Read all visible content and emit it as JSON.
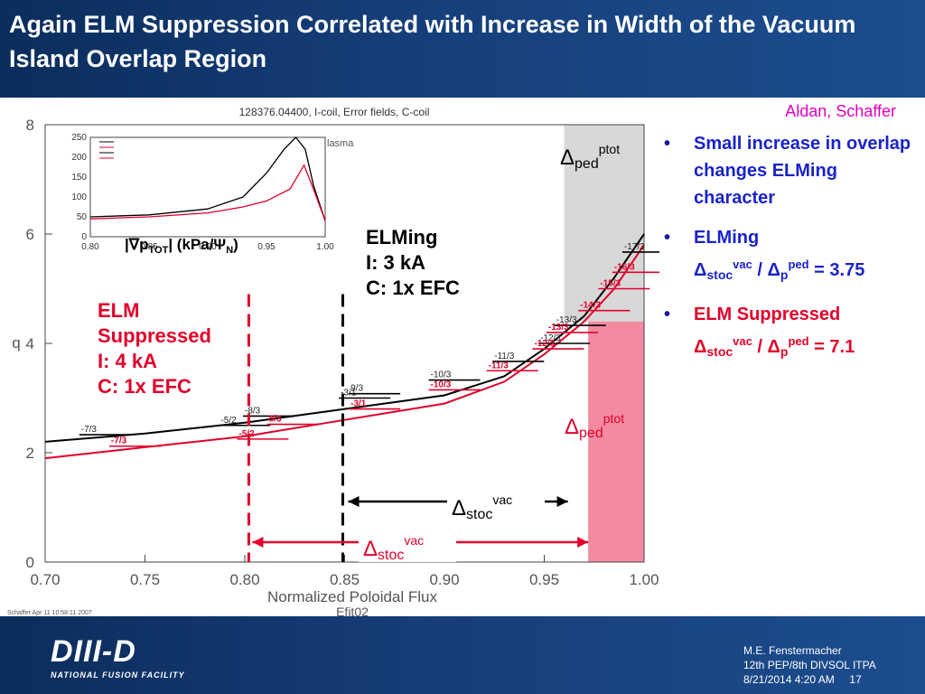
{
  "slide": {
    "title": "Again ELM Suppression Correlated with Increase in Width of the Vacuum Island Overlap Region",
    "authors": "Aldan, Schaffer",
    "bullets": [
      {
        "text": "Small increase in overlap changes ELMing character",
        "color": "#1a23c8"
      },
      {
        "text": "ELMing",
        "ratio_value": "= 3.75",
        "color": "#1a23c8"
      },
      {
        "text": "ELM Suppressed",
        "ratio_value": "= 7.1",
        "color": "#e0002a"
      }
    ],
    "footer": {
      "logo": "DIII-D",
      "logo_sub": "NATIONAL FUSION FACILITY",
      "line1": "M.E. Fenstermacher",
      "line2": "12th PEP/8th DIVSOL ITPA",
      "line3": "8/21/2014 4:20 AM",
      "page": "17"
    }
  },
  "chart_data": [
    {
      "type": "line",
      "title": "128376.04400, I-coil, Error fields, C-coil",
      "xlabel": "Normalized Poloidal Flux",
      "xlabel2": "Efit02",
      "ylabel": "q",
      "xlim": [
        0.7,
        1.0
      ],
      "ylim": [
        0,
        8
      ],
      "x_ticks": [
        "0.70",
        "0.75",
        "0.80",
        "0.85",
        "0.90",
        "0.95",
        "1.00"
      ],
      "y_ticks": [
        "0",
        "2",
        "4",
        "6",
        "8"
      ],
      "credit": "Schaffer Apr 11 10:58:11 2007",
      "series": [
        {
          "color": "#000000",
          "points": [
            [
              0.7,
              2.2
            ],
            [
              0.75,
              2.35
            ],
            [
              0.8,
              2.55
            ],
            [
              0.85,
              2.8
            ],
            [
              0.9,
              3.05
            ],
            [
              0.93,
              3.4
            ],
            [
              0.95,
              3.9
            ],
            [
              0.97,
              4.5
            ],
            [
              0.985,
              5.2
            ],
            [
              1.0,
              6.0
            ]
          ]
        },
        {
          "color": "#e0002a",
          "points": [
            [
              0.7,
              1.9
            ],
            [
              0.75,
              2.1
            ],
            [
              0.8,
              2.3
            ],
            [
              0.85,
              2.6
            ],
            [
              0.9,
              2.9
            ],
            [
              0.93,
              3.3
            ],
            [
              0.95,
              3.8
            ],
            [
              0.97,
              4.4
            ],
            [
              0.985,
              5.0
            ],
            [
              1.0,
              5.8
            ]
          ]
        }
      ],
      "black_labels": [
        {
          "text": "-7/3",
          "x": 0.718,
          "q": 2.33
        },
        {
          "text": "-5/2",
          "x": 0.788,
          "q": 2.5
        },
        {
          "text": "-8/3",
          "x": 0.8,
          "q": 2.67
        },
        {
          "text": "-3/1",
          "x": 0.848,
          "q": 3.0
        },
        {
          "text": "9/3",
          "x": 0.853,
          "q": 3.08
        },
        {
          "text": "-10/3",
          "x": 0.893,
          "q": 3.33
        },
        {
          "text": "-11/3",
          "x": 0.925,
          "q": 3.67
        },
        {
          "text": "-12/3",
          "x": 0.948,
          "q": 4.0
        },
        {
          "text": "-13/3",
          "x": 0.956,
          "q": 4.33
        },
        {
          "text": "-17/3",
          "x": 0.99,
          "q": 5.67
        }
      ],
      "red_labels": [
        {
          "text": "-7/3",
          "x": 0.733,
          "q": 2.12
        },
        {
          "text": "8/3",
          "x": 0.812,
          "q": 2.52
        },
        {
          "text": "-5/2",
          "x": 0.797,
          "q": 2.25
        },
        {
          "text": "-3/1",
          "x": 0.853,
          "q": 2.8
        },
        {
          "text": "-10/3",
          "x": 0.893,
          "q": 3.15
        },
        {
          "text": "-11/3",
          "x": 0.922,
          "q": 3.5
        },
        {
          "text": "-12/3",
          "x": 0.945,
          "q": 3.9
        },
        {
          "text": "-13/3",
          "x": 0.952,
          "q": 4.2
        },
        {
          "text": "-14/3",
          "x": 0.968,
          "q": 4.6
        },
        {
          "text": "-15/3",
          "x": 0.978,
          "q": 5.0
        },
        {
          "text": "-16/3",
          "x": 0.985,
          "q": 5.3
        }
      ],
      "annotations": {
        "ped_top_label": "Δ",
        "ped_sub": "ped",
        "ped_sup": "ptot",
        "stoc_sub": "stoc",
        "stoc_sup": "vac",
        "elming_lines": [
          "ELMing",
          "I:    3 kA",
          "C:   1x EFC"
        ],
        "suppressed_lines": [
          "ELM",
          "Suppressed",
          "I:    4 kA",
          "C:   1x EFC"
        ],
        "elming_x": 0.85,
        "suppressed_x": 0.802,
        "gray_band": [
          0.96,
          1.0
        ],
        "pink_band": [
          0.972,
          1.0
        ]
      }
    },
    {
      "type": "line",
      "ylabel_text": "|∇p",
      "ylabel_sub": "TOT",
      "ylabel_units": "| (kPa/Ψ",
      "ylabel_units_sub": "N",
      "xlim": [
        0.8,
        1.0
      ],
      "ylim": [
        0,
        250
      ],
      "x_ticks": [
        "0.80",
        "0.85",
        "0.90",
        "0.95",
        "1.00"
      ],
      "y_ticks": [
        "0",
        "50",
        "100",
        "150",
        "200",
        "250"
      ],
      "series": [
        {
          "color": "#000000",
          "points": [
            [
              0.8,
              50
            ],
            [
              0.85,
              55
            ],
            [
              0.9,
              70
            ],
            [
              0.93,
              100
            ],
            [
              0.95,
              160
            ],
            [
              0.965,
              220
            ],
            [
              0.975,
              250
            ],
            [
              0.983,
              220
            ],
            [
              0.99,
              130
            ],
            [
              1.0,
              40
            ]
          ]
        },
        {
          "color": "#e0002a",
          "points": [
            [
              0.8,
              45
            ],
            [
              0.85,
              50
            ],
            [
              0.9,
              60
            ],
            [
              0.93,
              75
            ],
            [
              0.95,
              90
            ],
            [
              0.97,
              120
            ],
            [
              0.982,
              180
            ],
            [
              0.99,
              120
            ],
            [
              1.0,
              40
            ]
          ]
        }
      ]
    }
  ]
}
